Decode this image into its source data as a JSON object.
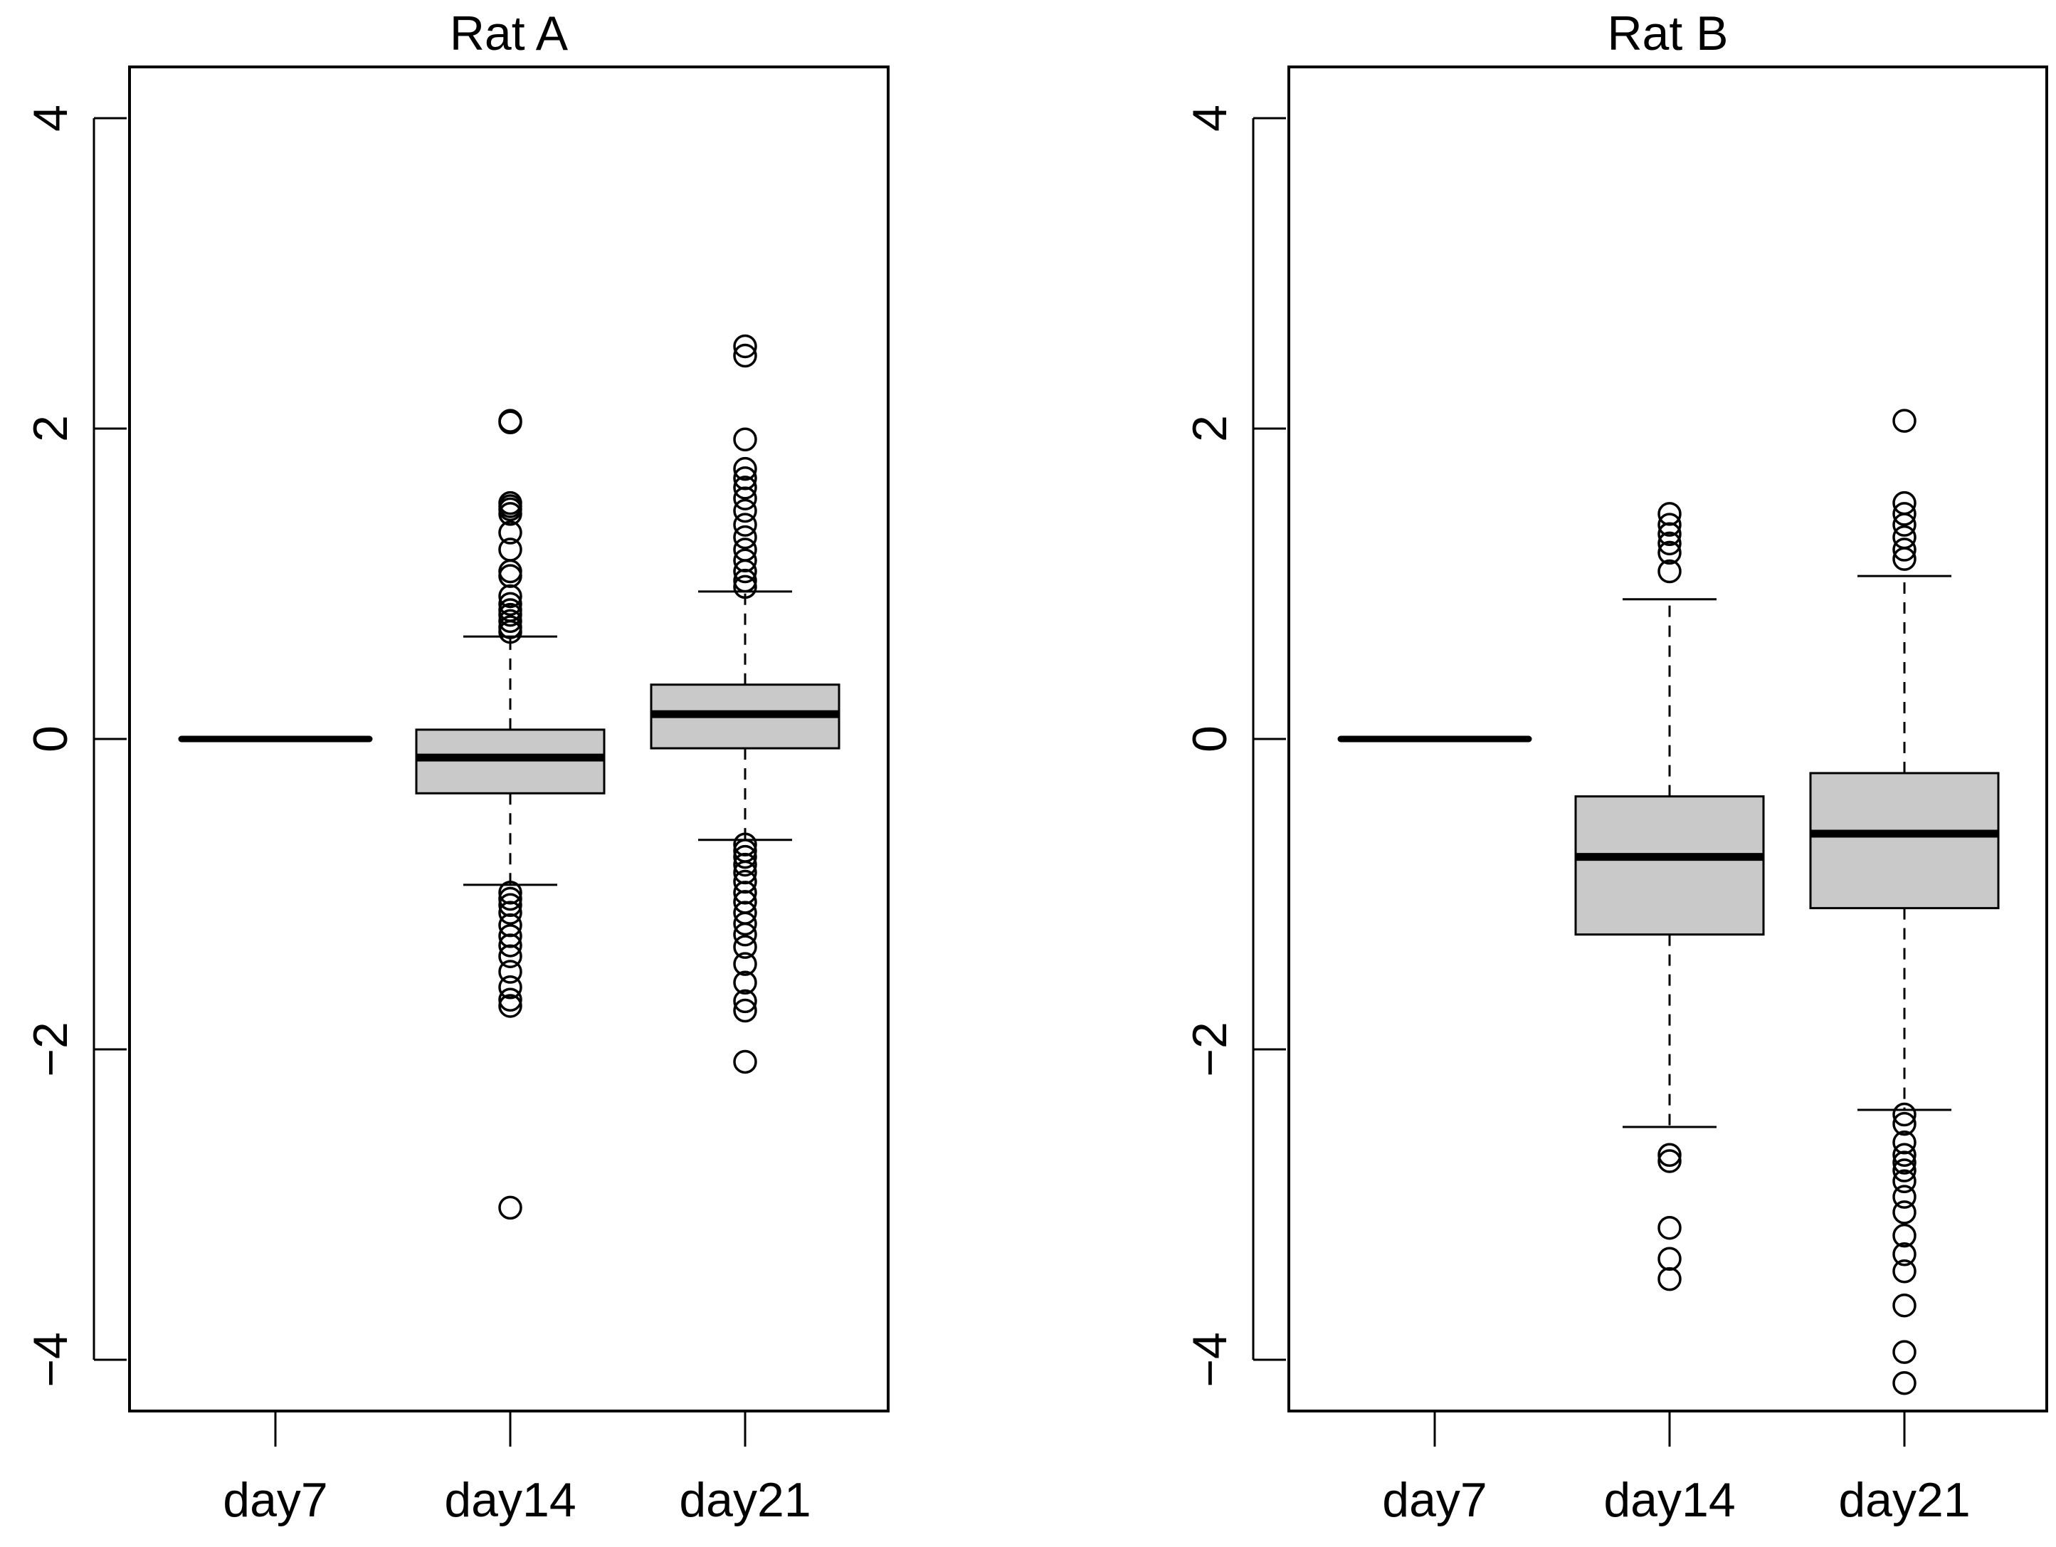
{
  "chart_data": [
    {
      "type": "boxplot",
      "title": "Rat A",
      "xlabel": "",
      "ylabel": "",
      "ylim": [
        -4.6,
        4.6
      ],
      "yticks": [
        -4,
        -2,
        0,
        2,
        4
      ],
      "ytick_labels": [
        "−4",
        "−2",
        "0",
        "2",
        "4"
      ],
      "categories": [
        "day7",
        "day14",
        "day21"
      ],
      "boxes": [
        {
          "q1": 0.0,
          "median": 0.0,
          "q3": 0.0,
          "whisker_low": 0.0,
          "whisker_high": 0.0,
          "outliers": []
        },
        {
          "q1": -0.35,
          "median": -0.12,
          "q3": 0.06,
          "whisker_low": -0.94,
          "whisker_high": 0.66,
          "outliers": [
            2.05,
            2.04,
            1.52,
            1.5,
            1.48,
            1.45,
            1.33,
            1.22,
            1.08,
            1.05,
            0.92,
            0.87,
            0.83,
            0.8,
            0.76,
            0.72,
            0.69,
            -0.99,
            -1.03,
            -1.07,
            -1.12,
            -1.2,
            -1.27,
            -1.33,
            -1.4,
            -1.5,
            -1.6,
            -1.68,
            -1.72,
            -3.02
          ]
        },
        {
          "q1": -0.06,
          "median": 0.16,
          "q3": 0.35,
          "whisker_low": -0.65,
          "whisker_high": 0.95,
          "outliers": [
            2.53,
            2.47,
            1.93,
            1.74,
            1.68,
            1.62,
            1.55,
            1.47,
            1.38,
            1.3,
            1.22,
            1.15,
            1.08,
            1.02,
            0.98,
            -0.68,
            -0.72,
            -0.76,
            -0.81,
            -0.86,
            -0.92,
            -0.99,
            -1.05,
            -1.12,
            -1.19,
            -1.26,
            -1.34,
            -1.45,
            -1.57,
            -1.69,
            -1.75,
            -2.08
          ]
        }
      ]
    },
    {
      "type": "boxplot",
      "title": "Rat B",
      "xlabel": "",
      "ylabel": "",
      "ylim": [
        -4.6,
        4.6
      ],
      "yticks": [
        -4,
        -2,
        0,
        2,
        4
      ],
      "ytick_labels": [
        "−4",
        "−2",
        "0",
        "2",
        "4"
      ],
      "categories": [
        "day7",
        "day14",
        "day21"
      ],
      "boxes": [
        {
          "q1": 0.0,
          "median": 0.0,
          "q3": 0.0,
          "whisker_low": 0.0,
          "whisker_high": 0.0,
          "outliers": []
        },
        {
          "q1": -1.26,
          "median": -0.76,
          "q3": -0.37,
          "whisker_low": -2.5,
          "whisker_high": 0.9,
          "outliers": [
            1.45,
            1.38,
            1.32,
            1.26,
            1.2,
            1.08,
            -2.68,
            -2.72,
            -3.15,
            -3.35,
            -3.48
          ]
        },
        {
          "q1": -1.09,
          "median": -0.61,
          "q3": -0.22,
          "whisker_low": -2.39,
          "whisker_high": 1.05,
          "outliers": [
            2.05,
            1.52,
            1.45,
            1.38,
            1.3,
            1.22,
            1.16,
            -2.42,
            -2.48,
            -2.6,
            -2.68,
            -2.73,
            -2.78,
            -2.85,
            -2.95,
            -3.05,
            -3.2,
            -3.32,
            -3.43,
            -3.65,
            -3.95,
            -4.15
          ]
        }
      ]
    }
  ],
  "colors": {
    "box_fill": "#c9c9c9",
    "stroke": "#000000",
    "background": "#ffffff"
  }
}
